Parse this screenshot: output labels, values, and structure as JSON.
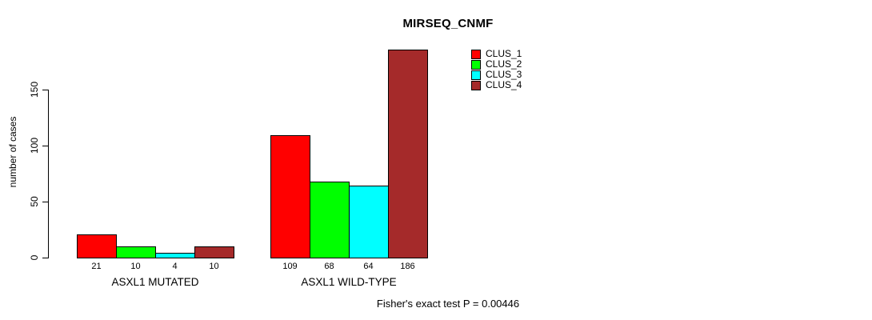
{
  "chart_data": {
    "type": "bar",
    "title": "MIRSEQ_CNMF",
    "ylabel": "number of cases",
    "xlabel": "",
    "groups": [
      "ASXL1 MUTATED",
      "ASXL1 WILD-TYPE"
    ],
    "series": [
      {
        "name": "CLUS_1",
        "color": "#FF0000",
        "values": [
          21,
          109
        ]
      },
      {
        "name": "CLUS_2",
        "color": "#00FF00",
        "values": [
          10,
          68
        ]
      },
      {
        "name": "CLUS_3",
        "color": "#00FFFF",
        "values": [
          4,
          64
        ]
      },
      {
        "name": "CLUS_4",
        "color": "#A52A2A",
        "values": [
          10,
          186
        ]
      }
    ],
    "yticks": [
      0,
      50,
      100,
      150
    ],
    "ylim": [
      0,
      190
    ],
    "bar_value_labels": [
      [
        "21",
        "10",
        "4",
        "10"
      ],
      [
        "109",
        "68",
        "64",
        "186"
      ]
    ],
    "legend_entries": [
      "CLUS_1",
      "CLUS_2",
      "CLUS_3",
      "CLUS_4"
    ],
    "legend_position": "upper-right-of-plot",
    "grid": false,
    "annotation": "Fisher's exact test P = 0.00446",
    "axis_color": "#000000",
    "background_color": "#FFFFFF"
  }
}
